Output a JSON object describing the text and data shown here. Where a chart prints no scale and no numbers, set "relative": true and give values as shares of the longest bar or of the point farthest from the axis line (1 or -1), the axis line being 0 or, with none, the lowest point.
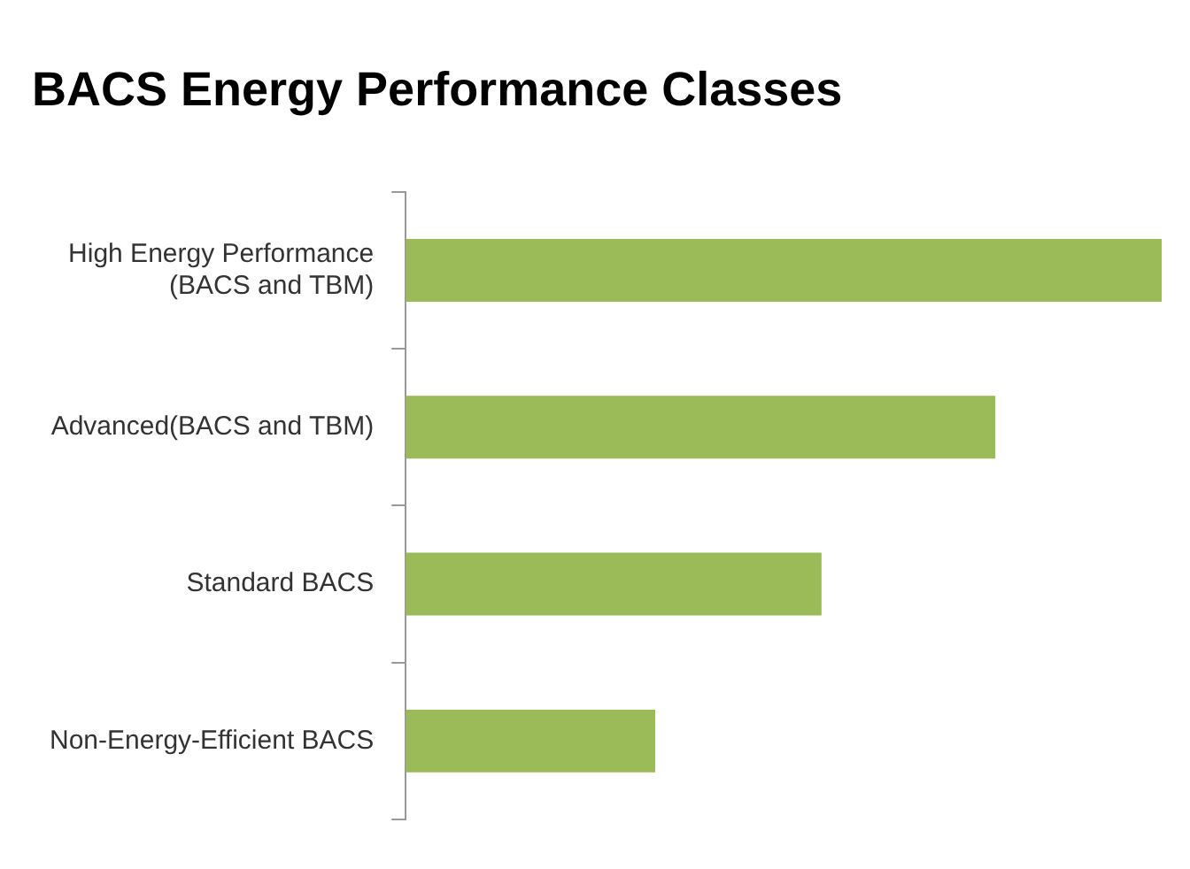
{
  "chart_data": {
    "type": "bar",
    "orientation": "horizontal",
    "relative": true,
    "title": "BACS Energy Performance Classes",
    "categories": [
      "High Energy Performance (BACS and TBM)",
      "Advanced(BACS and TBM)",
      "Standard BACS",
      "Non-Energy-Efficient BACS"
    ],
    "values": [
      1,
      0.78,
      0.55,
      0.33
    ],
    "color": "#9bbb59",
    "grid": false,
    "legend": false
  }
}
